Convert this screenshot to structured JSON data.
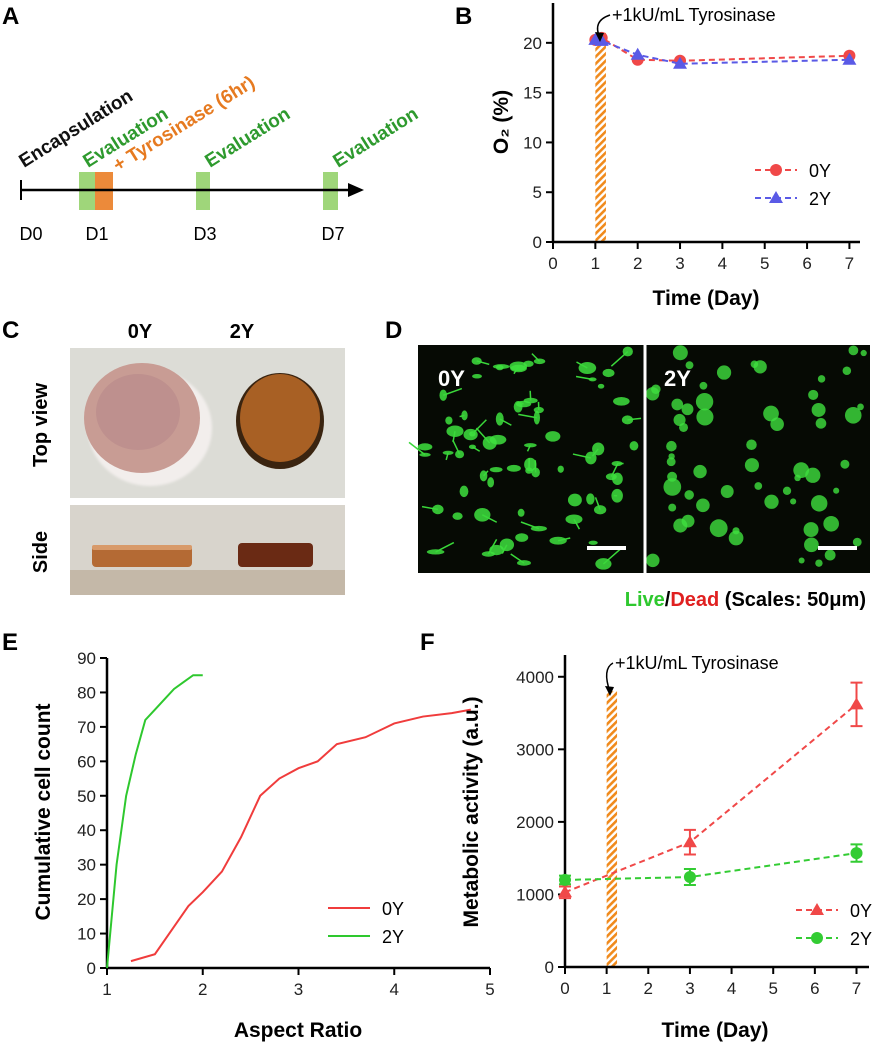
{
  "panel_labels": [
    "A",
    "B",
    "C",
    "D",
    "E",
    "F"
  ],
  "timeline": {
    "events": [
      "Encapsulation",
      "Evaluation",
      "+ Tyrosinase (6hr)",
      "Evaluation",
      "Evaluation"
    ],
    "days": [
      "D0",
      "D1",
      "D3",
      "D7"
    ]
  },
  "photos": {
    "columns": [
      "0Y",
      "2Y"
    ],
    "rows": [
      "Top view",
      "Side"
    ]
  },
  "microscopy": {
    "panels": [
      "0Y",
      "2Y"
    ],
    "caption": {
      "live": "Live",
      "slash": "/",
      "dead": "Dead",
      "scale": "(Scales: 50μm)"
    }
  },
  "chart_data": [
    {
      "type": "line",
      "xlabel": "Time (Day)",
      "ylabel": "O₂ (%)",
      "annotation": "+1kU/mL Tyrosinase",
      "x": [
        1,
        1.15,
        2,
        3,
        7
      ],
      "series": [
        {
          "name": "0Y",
          "color": "#f04848",
          "marker": "circle",
          "values": [
            20.3,
            20.5,
            18.3,
            18.2,
            18.7
          ]
        },
        {
          "name": "2Y",
          "color": "#5a5ae6",
          "marker": "triangle",
          "values": [
            20.3,
            20.2,
            18.8,
            17.9,
            18.3
          ]
        }
      ],
      "linestyle": "dashed",
      "highlight_x": [
        1,
        1.25
      ],
      "highlight_top": 21,
      "xlim": [
        0,
        7.25
      ],
      "xticks": [
        0,
        1,
        2,
        3,
        4,
        5,
        6,
        7
      ],
      "ylim": [
        0,
        24
      ],
      "yticks": [
        0,
        5,
        10,
        15,
        20
      ],
      "legend": "center-right"
    },
    {
      "type": "line",
      "xlabel": "Aspect Ratio",
      "ylabel": "Cumulative cell count",
      "series": [
        {
          "name": "0Y",
          "color": "#f03c3c",
          "marker": "none",
          "x": [
            1.25,
            1.5,
            1.7,
            1.85,
            2,
            2.2,
            2.4,
            2.6,
            2.8,
            3,
            3.2,
            3.4,
            3.7,
            4,
            4.3,
            4.6,
            4.8
          ],
          "values": [
            2,
            4,
            12,
            18,
            22,
            28,
            38,
            50,
            55,
            58,
            60,
            65,
            67,
            71,
            73,
            74,
            75
          ]
        },
        {
          "name": "2Y",
          "color": "#2ec82e",
          "marker": "none",
          "x": [
            1,
            1.05,
            1.1,
            1.2,
            1.3,
            1.4,
            1.5,
            1.6,
            1.7,
            1.8,
            1.9,
            2
          ],
          "values": [
            0,
            15,
            30,
            50,
            62,
            72,
            75,
            78,
            81,
            83,
            85,
            85
          ]
        }
      ],
      "linestyle": "solid",
      "xlim": [
        1,
        5
      ],
      "xticks": [
        1,
        2,
        3,
        4,
        5
      ],
      "ylim": [
        0,
        90
      ],
      "yticks": [
        0,
        10,
        20,
        30,
        40,
        50,
        60,
        70,
        80,
        90
      ],
      "legend": "lower-right"
    },
    {
      "type": "line",
      "xlabel": "Time (Day)",
      "ylabel": "Metabolic activity (a.u.)",
      "annotation": "+1kU/mL Tyrosinase",
      "x": [
        0,
        3,
        7
      ],
      "series": [
        {
          "name": "0Y",
          "color": "#f04848",
          "marker": "triangle",
          "values": [
            1030,
            1720,
            3620
          ],
          "errors": [
            80,
            170,
            300
          ]
        },
        {
          "name": "2Y",
          "color": "#33cc33",
          "marker": "circle",
          "values": [
            1200,
            1240,
            1570
          ],
          "errors": [
            60,
            110,
            120
          ]
        }
      ],
      "linestyle": "dashed",
      "highlight_x": [
        1,
        1.25
      ],
      "highlight_top": 3800,
      "xlim": [
        0,
        7.3
      ],
      "xticks": [
        0,
        1,
        2,
        3,
        4,
        5,
        6,
        7
      ],
      "ylim": [
        0,
        4300
      ],
      "yticks": [
        0,
        1000,
        2000,
        3000,
        4000
      ],
      "legend": "lower-right"
    }
  ]
}
